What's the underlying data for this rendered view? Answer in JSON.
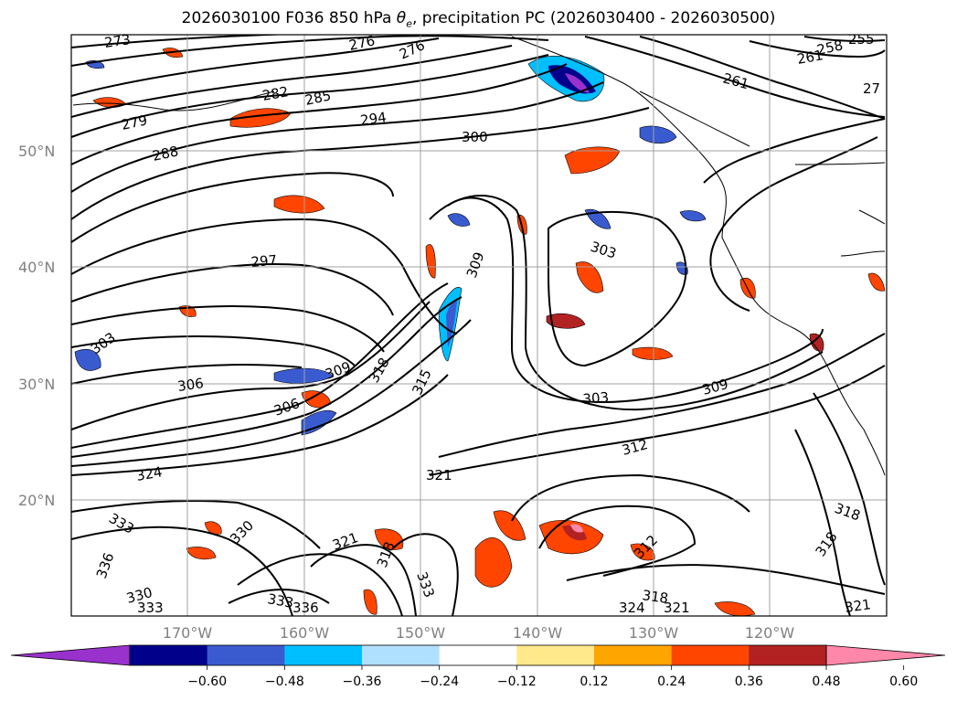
{
  "title_prefix": "2026030100 F036 850 hPa ",
  "title_symbol": "θ",
  "title_symbol_sub": "e",
  "title_suffix": ", precipitation PC (2026030400 - 2026030500)",
  "latitude_labels": [
    "50°N",
    "40°N",
    "30°N",
    "20°N"
  ],
  "longitude_labels": [
    "170°W",
    "160°W",
    "150°W",
    "140°W",
    "130°W",
    "120°W"
  ],
  "colorbar": {
    "colors": [
      "#9932cc",
      "#00008b",
      "#3a5bd0",
      "#00bfff",
      "#b0e0ff",
      "#ffffff",
      "#ffe98a",
      "#ffa500",
      "#ff4500",
      "#b22222",
      "#ff88aa"
    ],
    "tick_labels": [
      "−0.60",
      "−0.48",
      "−0.36",
      "−0.24",
      "−0.12",
      "0.12",
      "0.24",
      "0.36",
      "0.48",
      "0.60"
    ]
  },
  "contour_labels": [
    "273",
    "276",
    "276",
    "258",
    "255",
    "261",
    "261",
    "27",
    "282",
    "285",
    "294",
    "279",
    "288",
    "300",
    "297",
    "309",
    "303",
    "303",
    "306",
    "309",
    "318",
    "315",
    "306",
    "303",
    "309",
    "312",
    "324",
    "321",
    "318",
    "333",
    "330",
    "321",
    "318",
    "333",
    "336",
    "330",
    "333",
    "333",
    "336",
    "312",
    "318",
    "318",
    "324",
    "321",
    "321"
  ]
}
